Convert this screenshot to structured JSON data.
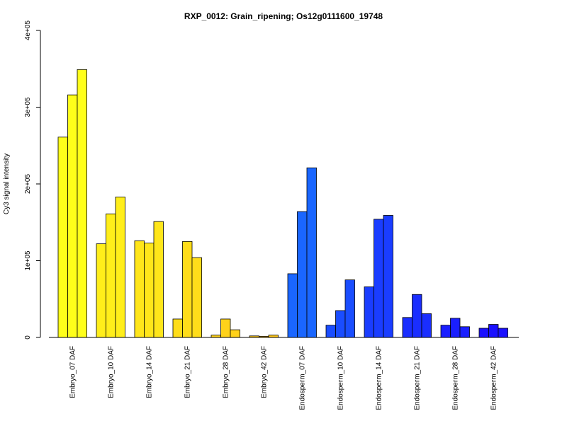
{
  "chart_data": {
    "type": "bar",
    "title": "RXP_0012: Grain_ripening; Os12g0111600_19748",
    "xlabel": "",
    "ylabel": "Cy3 signal intensity",
    "ylim": [
      0,
      400000
    ],
    "yticks": [
      {
        "value": 0,
        "label": "0"
      },
      {
        "value": 100000,
        "label": "1e+05"
      },
      {
        "value": 200000,
        "label": "2e+05"
      },
      {
        "value": 300000,
        "label": "3e+05"
      },
      {
        "value": 400000,
        "label": "4e+05"
      }
    ],
    "grid": false,
    "legend": "none",
    "categories": [
      "Embryo_07 DAF",
      "Embryo_10 DAF",
      "Embryo_14 DAF",
      "Embryo_21 DAF",
      "Embryo_28 DAF",
      "Embryo_42 DAF",
      "Endosperm_07 DAF",
      "Endosperm_10 DAF",
      "Endosperm_14 DAF",
      "Endosperm_21 DAF",
      "Endosperm_28 DAF",
      "Endosperm_42 DAF"
    ],
    "colors": [
      "#ffff1a",
      "#ffee1a",
      "#ffe61a",
      "#ffdd1a",
      "#ffd21a",
      "#ffc81a",
      "#1a66ff",
      "#1a4dff",
      "#1a3dff",
      "#1a2eff",
      "#1a1fff",
      "#1a10ff"
    ],
    "replicates": [
      [
        261000,
        316000,
        349000
      ],
      [
        122000,
        161000,
        183000
      ],
      [
        126000,
        123000,
        151000
      ],
      [
        24000,
        125000,
        104000
      ],
      [
        3000,
        24000,
        10000
      ],
      [
        2000,
        1500,
        3000
      ],
      [
        83000,
        164000,
        221000
      ],
      [
        16000,
        35000,
        75000
      ],
      [
        66000,
        154000,
        159000
      ],
      [
        26000,
        56000,
        31000
      ],
      [
        16000,
        25000,
        14000
      ],
      [
        12000,
        17000,
        12000
      ]
    ]
  }
}
